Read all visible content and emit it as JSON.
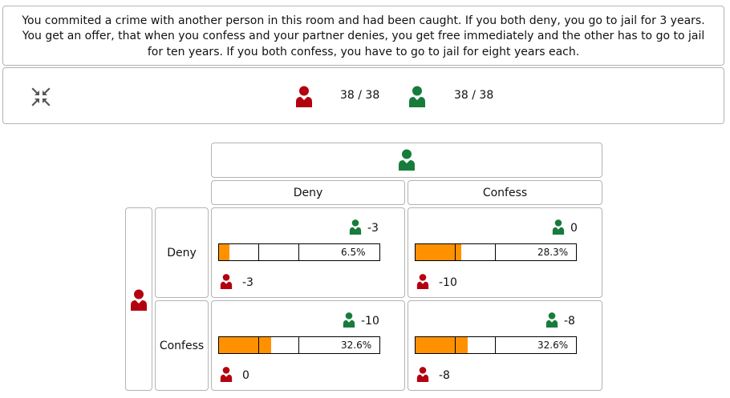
{
  "scenario": {
    "text": "You commited a crime with another person in this room and had been caught. If you both deny, you go to jail for 3 years. You get an offer, that when you confess and your partner denies, you get free immediately and the other has to go to jail for ten years. If you both confess, you have to go to jail for eight years each."
  },
  "status": {
    "collapse_icon": "compress-arrows-icon",
    "red_player": {
      "icon": "red-user-icon",
      "color": "#b3000f",
      "count": "38 / 38"
    },
    "green_player": {
      "icon": "green-user-icon",
      "color": "#177c3b",
      "count": "38 / 38"
    }
  },
  "matrix": {
    "column_player": "green",
    "row_player": "red",
    "columns": [
      "Deny",
      "Confess"
    ],
    "rows": [
      "Deny",
      "Confess"
    ],
    "colors": {
      "bar_fill": "#ff9100"
    },
    "cells": [
      [
        {
          "green_payoff": "-3",
          "red_payoff": "-3",
          "share": 0.065,
          "share_label": "6.5%"
        },
        {
          "green_payoff": "0",
          "red_payoff": "-10",
          "share": 0.283,
          "share_label": "28.3%"
        }
      ],
      [
        {
          "green_payoff": "-10",
          "red_payoff": "0",
          "share": 0.326,
          "share_label": "32.6%"
        },
        {
          "green_payoff": "-8",
          "red_payoff": "-8",
          "share": 0.326,
          "share_label": "32.6%"
        }
      ]
    ]
  }
}
